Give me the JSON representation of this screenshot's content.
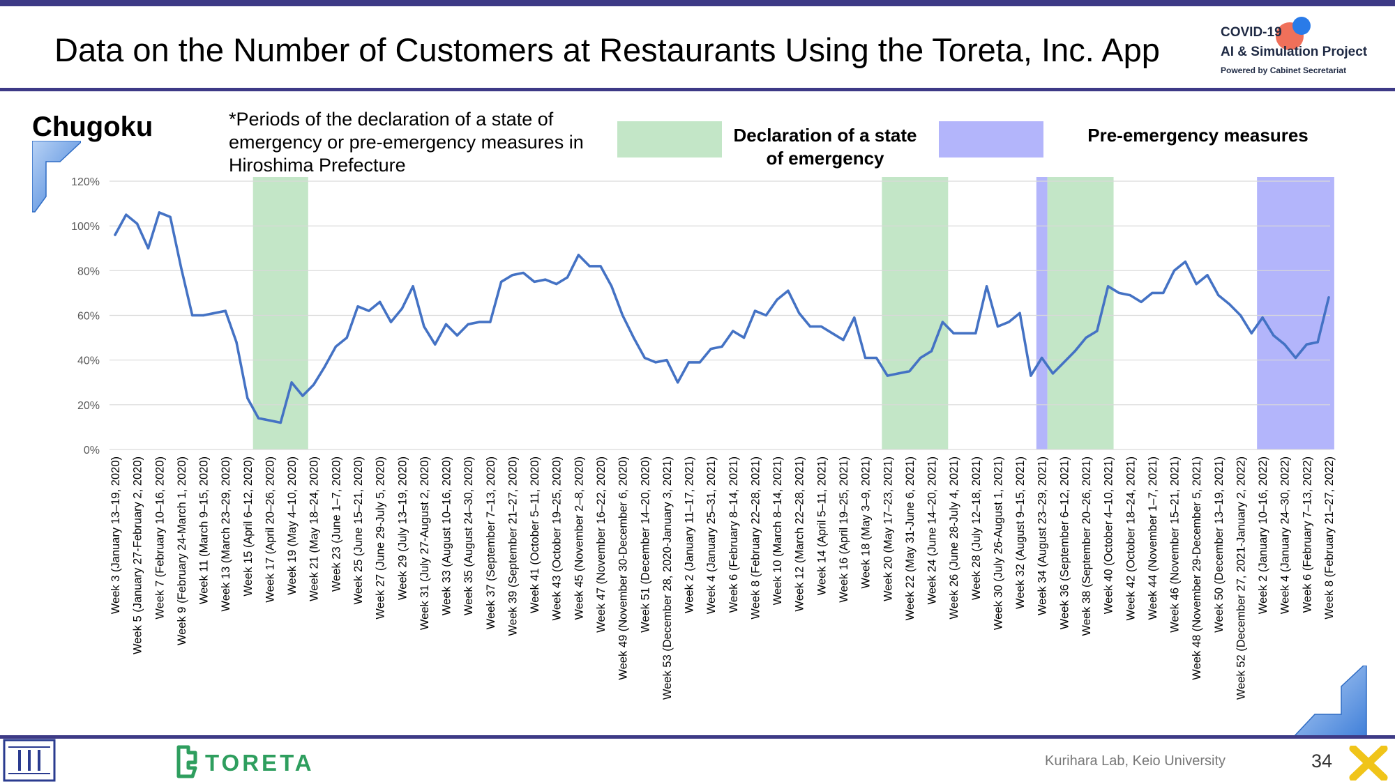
{
  "header": {
    "title": "Data on the Number of Customers at Restaurants Using the Toreta, Inc. App",
    "logo": {
      "line1": "COVID-19",
      "line2": "AI & Simulation Project",
      "line3": "Powered by Cabinet Secretariat"
    }
  },
  "region": "Chugoku",
  "note": "*Periods of the declaration of a state of emergency or pre-emergency measures in Hiroshima Prefecture",
  "legend": {
    "emergency_label": "Declaration of a state of emergency",
    "pre_emergency_label": "Pre-emergency measures"
  },
  "colors": {
    "line": "#4472c4",
    "emergency_band": "#c3e6c7",
    "pre_emergency_band": "#b3b5fb",
    "theme_bar": "#3d3a86",
    "toreta_green": "#2e9e5e"
  },
  "chart_data": {
    "type": "line",
    "title": "",
    "xlabel": "",
    "ylabel": "",
    "ylim": [
      0,
      120
    ],
    "y_unit": "%",
    "y_ticks": [
      "0%",
      "20%",
      "40%",
      "60%",
      "80%",
      "100%",
      "120%"
    ],
    "grid": true,
    "x": [
      "2020-W03",
      "2020-W04",
      "2020-W05",
      "2020-W06",
      "2020-W07",
      "2020-W08",
      "2020-W09",
      "2020-W10",
      "2020-W11",
      "2020-W12",
      "2020-W13",
      "2020-W14",
      "2020-W15",
      "2020-W16",
      "2020-W17",
      "2020-W18",
      "2020-W19",
      "2020-W20",
      "2020-W21",
      "2020-W22",
      "2020-W23",
      "2020-W24",
      "2020-W25",
      "2020-W26",
      "2020-W27",
      "2020-W28",
      "2020-W29",
      "2020-W30",
      "2020-W31",
      "2020-W32",
      "2020-W33",
      "2020-W34",
      "2020-W35",
      "2020-W36",
      "2020-W37",
      "2020-W38",
      "2020-W39",
      "2020-W40",
      "2020-W41",
      "2020-W42",
      "2020-W43",
      "2020-W44",
      "2020-W45",
      "2020-W46",
      "2020-W47",
      "2020-W48",
      "2020-W49",
      "2020-W50",
      "2020-W51",
      "2020-W52",
      "2020-W53",
      "2021-W01",
      "2021-W02",
      "2021-W03",
      "2021-W04",
      "2021-W05",
      "2021-W06",
      "2021-W07",
      "2021-W08",
      "2021-W09",
      "2021-W10",
      "2021-W11",
      "2021-W12",
      "2021-W13",
      "2021-W14",
      "2021-W15",
      "2021-W16",
      "2021-W17",
      "2021-W18",
      "2021-W19",
      "2021-W20",
      "2021-W21",
      "2021-W22",
      "2021-W23",
      "2021-W24",
      "2021-W25",
      "2021-W26",
      "2021-W27",
      "2021-W28",
      "2021-W29",
      "2021-W30",
      "2021-W31",
      "2021-W32",
      "2021-W33",
      "2021-W34",
      "2021-W35",
      "2021-W36",
      "2021-W37",
      "2021-W38",
      "2021-W39",
      "2021-W40",
      "2021-W41",
      "2021-W42",
      "2021-W43",
      "2021-W44",
      "2021-W45",
      "2021-W46",
      "2021-W47",
      "2021-W48",
      "2021-W49",
      "2021-W50",
      "2021-W51",
      "2021-W52",
      "2022-W01",
      "2022-W02",
      "2022-W03",
      "2022-W04",
      "2022-W05",
      "2022-W06",
      "2022-W07",
      "2022-W08"
    ],
    "x_tick_labels": [
      {
        "week": "2020-W03",
        "label": "Week 3 (January 13–19, 2020)"
      },
      {
        "week": "2020-W05",
        "label": "Week 5 (January 27-February 2, 2020)"
      },
      {
        "week": "2020-W07",
        "label": "Week 7 (February 10–16, 2020)"
      },
      {
        "week": "2020-W09",
        "label": "Week 9 (February 24-March 1, 2020)"
      },
      {
        "week": "2020-W11",
        "label": "Week 11 (March 9–15, 2020)"
      },
      {
        "week": "2020-W13",
        "label": "Week 13 (March 23–29, 2020)"
      },
      {
        "week": "2020-W15",
        "label": "Week 15 (April 6–12, 2020)"
      },
      {
        "week": "2020-W17",
        "label": "Week 17 (April 20–26, 2020)"
      },
      {
        "week": "2020-W19",
        "label": "Week 19 (May 4–10, 2020)"
      },
      {
        "week": "2020-W21",
        "label": "Week 21 (May 18–24, 2020)"
      },
      {
        "week": "2020-W23",
        "label": "Week 23 (June 1–7, 2020)"
      },
      {
        "week": "2020-W25",
        "label": "Week 25 (June 15–21, 2020)"
      },
      {
        "week": "2020-W27",
        "label": "Week 27 (June 29-July 5, 2020)"
      },
      {
        "week": "2020-W29",
        "label": "Week 29 (July 13–19, 2020)"
      },
      {
        "week": "2020-W31",
        "label": "Week 31 (July 27-August 2, 2020)"
      },
      {
        "week": "2020-W33",
        "label": "Week 33 (August 10–16, 2020)"
      },
      {
        "week": "2020-W35",
        "label": "Week 35 (August 24–30, 2020)"
      },
      {
        "week": "2020-W37",
        "label": "Week 37 (September 7–13, 2020)"
      },
      {
        "week": "2020-W39",
        "label": "Week 39 (September 21–27, 2020)"
      },
      {
        "week": "2020-W41",
        "label": "Week 41 (October 5–11, 2020)"
      },
      {
        "week": "2020-W43",
        "label": "Week 43 (October 19–25, 2020)"
      },
      {
        "week": "2020-W45",
        "label": "Week 45 (November 2–8, 2020)"
      },
      {
        "week": "2020-W47",
        "label": "Week 47 (November 16–22, 2020)"
      },
      {
        "week": "2020-W49",
        "label": "Week 49 (November 30-December 6, 2020)"
      },
      {
        "week": "2020-W51",
        "label": "Week 51 (December 14–20, 2020)"
      },
      {
        "week": "2020-W53",
        "label": "Week 53 (December 28, 2020-January 3, 2021)"
      },
      {
        "week": "2021-W02",
        "label": "Week 2 (January 11–17, 2021)"
      },
      {
        "week": "2021-W04",
        "label": "Week 4 (January 25–31, 2021)"
      },
      {
        "week": "2021-W06",
        "label": "Week 6 (February 8–14, 2021)"
      },
      {
        "week": "2021-W08",
        "label": "Week 8 (February 22–28, 2021)"
      },
      {
        "week": "2021-W10",
        "label": "Week 10 (March 8–14, 2021)"
      },
      {
        "week": "2021-W12",
        "label": "Week 12 (March 22–28, 2021)"
      },
      {
        "week": "2021-W14",
        "label": "Week 14 (April 5–11, 2021)"
      },
      {
        "week": "2021-W16",
        "label": "Week 16 (April 19–25, 2021)"
      },
      {
        "week": "2021-W18",
        "label": "Week 18 (May 3–9, 2021)"
      },
      {
        "week": "2021-W20",
        "label": "Week 20 (May 17–23, 2021)"
      },
      {
        "week": "2021-W22",
        "label": "Week 22 (May 31-June 6, 2021)"
      },
      {
        "week": "2021-W24",
        "label": "Week 24 (June 14–20, 2021)"
      },
      {
        "week": "2021-W26",
        "label": "Week 26 (June 28-July 4, 2021)"
      },
      {
        "week": "2021-W28",
        "label": "Week 28 (July 12–18, 2021)"
      },
      {
        "week": "2021-W30",
        "label": "Week 30 (July 26-August 1, 2021)"
      },
      {
        "week": "2021-W32",
        "label": "Week 32 (August 9–15, 2021)"
      },
      {
        "week": "2021-W34",
        "label": "Week 34 (August 23–29, 2021)"
      },
      {
        "week": "2021-W36",
        "label": "Week 36 (September 6–12, 2021)"
      },
      {
        "week": "2021-W38",
        "label": "Week 38 (September 20–26, 2021)"
      },
      {
        "week": "2021-W40",
        "label": "Week 40 (October 4–10, 2021)"
      },
      {
        "week": "2021-W42",
        "label": "Week 42 (October 18–24, 2021)"
      },
      {
        "week": "2021-W44",
        "label": "Week 44 (November 1–7, 2021)"
      },
      {
        "week": "2021-W46",
        "label": "Week 46 (November 15–21, 2021)"
      },
      {
        "week": "2021-W48",
        "label": "Week 48 (November 29-December 5, 2021)"
      },
      {
        "week": "2021-W50",
        "label": "Week 50 (December 13–19, 2021)"
      },
      {
        "week": "2021-W52",
        "label": "Week 52 (December 27, 2021-January 2, 2022)"
      },
      {
        "week": "2022-W02",
        "label": "Week 2 (January 10–16, 2022)"
      },
      {
        "week": "2022-W04",
        "label": "Week 4 (January 24–30, 2022)"
      },
      {
        "week": "2022-W06",
        "label": "Week 6 (February 7–13, 2022)"
      },
      {
        "week": "2022-W08",
        "label": "Week 8 (February 21–27, 2022)"
      }
    ],
    "series": [
      {
        "values": [
          96,
          105,
          101,
          90,
          106,
          104,
          81,
          60,
          60,
          61,
          62,
          48,
          23,
          14,
          13,
          12,
          30,
          24,
          29,
          37,
          46,
          50,
          64,
          62,
          66,
          57,
          63,
          73,
          55,
          47,
          56,
          51,
          56,
          57,
          57,
          75,
          78,
          79,
          75,
          76,
          74,
          77,
          87,
          82,
          82,
          73,
          60,
          50,
          41,
          39,
          40,
          30,
          39,
          39,
          45,
          46,
          53,
          50,
          62,
          60,
          67,
          71,
          61,
          55,
          55,
          52,
          49,
          59,
          41,
          41,
          33,
          34,
          35,
          41,
          44,
          57,
          52,
          52,
          52,
          73,
          55,
          57,
          61,
          33,
          41,
          34,
          39,
          44,
          50,
          53,
          73,
          70,
          69,
          66,
          70,
          70,
          80,
          84,
          74,
          78,
          69,
          65,
          60,
          52,
          59,
          51,
          47,
          41,
          47,
          48,
          68
        ]
      }
    ],
    "bands": [
      {
        "type": "emergency",
        "from": "2020-W16",
        "to": "2020-W20"
      },
      {
        "type": "emergency",
        "from": "2021-W20",
        "to": "2021-W25"
      },
      {
        "type": "pre-emergency",
        "from": "2021-W34",
        "to": "2021-W34"
      },
      {
        "type": "emergency",
        "from": "2021-W35",
        "to": "2021-W40"
      },
      {
        "type": "pre-emergency",
        "from": "2022-W02",
        "to": "2022-W08"
      }
    ]
  },
  "footer": {
    "toreta_wordmark": "TORETA",
    "lab_credit": "Kurihara Lab, Keio University",
    "page_number": "34"
  }
}
